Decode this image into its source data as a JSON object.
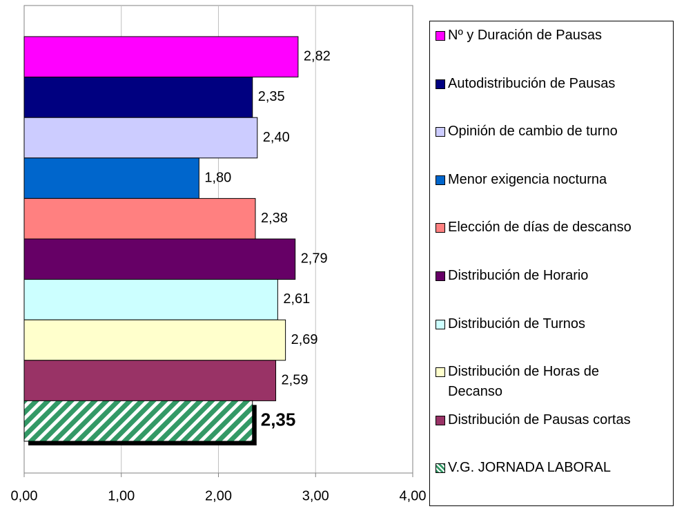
{
  "chart_data": {
    "type": "barh",
    "categories": [
      "Nº y Duración de Pausas",
      "Autodistribución de Pausas",
      "Opinión de cambio de turno",
      "Menor exigencia nocturna",
      "Elección de días de descanso",
      "Distribución de Horario",
      "Distribución de Turnos",
      "Distribución de Horas de Decanso",
      "Distribución de Pausas cortas",
      "V.G. JORNADA LABORAL"
    ],
    "values": [
      2.82,
      2.35,
      2.4,
      1.8,
      2.38,
      2.79,
      2.61,
      2.69,
      2.59,
      2.35
    ],
    "value_labels": [
      "2,82",
      "2,35",
      "2,40",
      "1,80",
      "2,38",
      "2,79",
      "2,61",
      "2,69",
      "2,59",
      "2,35"
    ],
    "colors": [
      "#ff00ff",
      "#000080",
      "#ccccff",
      "#0066cc",
      "#ff8080",
      "#660066",
      "#ccffff",
      "#ffffcc",
      "#993366",
      "#339966"
    ],
    "hatched": [
      false,
      false,
      false,
      false,
      false,
      false,
      false,
      false,
      false,
      true
    ],
    "xlim": [
      0,
      4
    ],
    "xticks": [
      {
        "value": 0,
        "label": "0,00"
      },
      {
        "value": 1,
        "label": "1,00"
      },
      {
        "value": 2,
        "label": "2,00"
      },
      {
        "value": 3,
        "label": "3,00"
      },
      {
        "value": 4,
        "label": "4,00"
      }
    ],
    "grid": true,
    "legend": "right"
  }
}
